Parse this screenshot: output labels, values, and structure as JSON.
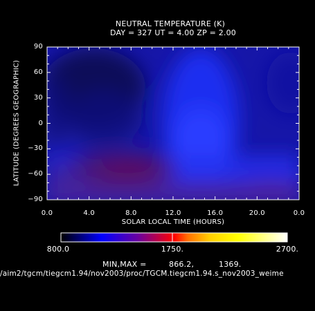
{
  "title_line1": "NEUTRAL TEMPERATURE (K)",
  "title_line2": "DAY = 327   UT =   4.00   ZP =    2.00",
  "minmax_label": "MIN,MAX =",
  "min_value": "866.2,",
  "max_value": "1369.",
  "file_path": "/aim2/tgcm/tiegcm1.94/nov2003/proc/TGCM.tiegcm1.94.s_nov2003_weime",
  "chart_data": {
    "type": "heatmap",
    "title": "NEUTRAL TEMPERATURE (K)",
    "xlabel": "SOLAR LOCAL TIME (HOURS)",
    "ylabel": "LATITUDE (DEGREES GEOGRAPHIC)",
    "xlim": [
      0,
      24
    ],
    "ylim": [
      -90,
      90
    ],
    "x_ticks": [
      "0.0",
      "4.0",
      "8.0",
      "12.0",
      "16.0",
      "20.0",
      "0.0"
    ],
    "y_ticks": [
      "−90",
      "−60",
      "−30",
      "0",
      "30",
      "60",
      "90"
    ],
    "y_tick_values": [
      -90,
      -60,
      -30,
      0,
      30,
      60,
      90
    ],
    "features": [
      {
        "kind": "cold_minimum",
        "slt": 6,
        "lat": 25,
        "value_K": 866.2
      },
      {
        "kind": "warm_maximum",
        "slt": 9,
        "lat": -55,
        "value_K": 1369
      }
    ],
    "colorbar": {
      "min": 800,
      "mid": 1750,
      "max": 2700,
      "labels": [
        "800.0",
        "1750.",
        "2700."
      ],
      "colors": [
        "#000000",
        "#0000ff",
        "#7a0090",
        "#ff0000",
        "#ff8000",
        "#ffff00",
        "#ffffff"
      ]
    }
  }
}
